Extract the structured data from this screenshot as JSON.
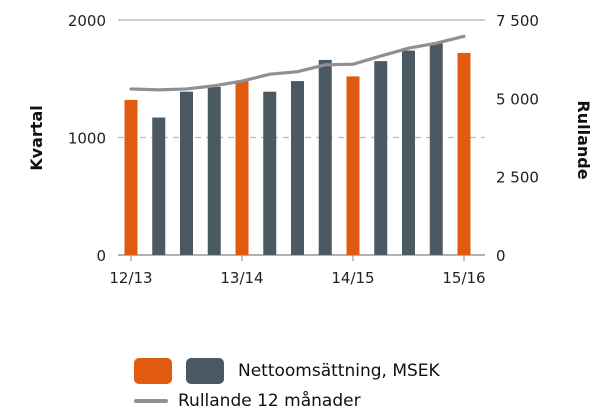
{
  "chart_data": {
    "type": "bar",
    "title": "",
    "x_tick_labels": [
      "12/13",
      "13/14",
      "14/15",
      "15/16"
    ],
    "y_left": {
      "label": "Kvartal",
      "ticks": [
        "0",
        "1000",
        "2000"
      ],
      "range": [
        0,
        2000
      ]
    },
    "y_right": {
      "label": "Rullande",
      "ticks": [
        "0",
        "2 500",
        "5 000",
        "7 500"
      ],
      "range": [
        0,
        7500
      ]
    },
    "grid": true,
    "legend_position": "bottom",
    "series": [
      {
        "name": "Nettoomsättning, MSEK",
        "kind": "bar",
        "colors": {
          "highlight": "#e05a10",
          "normal": "#4b5963"
        },
        "highlight_pattern": [
          true,
          false,
          false,
          false,
          true,
          false,
          false,
          false,
          true,
          false,
          false,
          false,
          true
        ],
        "values": [
          1320,
          1170,
          1390,
          1430,
          1480,
          1390,
          1480,
          1660,
          1520,
          1650,
          1740,
          1800,
          1720
        ]
      },
      {
        "name": "Rullande 12 månader",
        "kind": "line",
        "axis": "right",
        "color": "#909090",
        "values": [
          5300,
          5270,
          5300,
          5400,
          5550,
          5770,
          5850,
          6070,
          6090,
          6350,
          6600,
          6760,
          6980
        ]
      }
    ]
  },
  "colors": {
    "highlight": "#e05a10",
    "bar": "#4b5963",
    "line": "#909090",
    "grid": "#bbbbbb",
    "axis": "#999999"
  }
}
